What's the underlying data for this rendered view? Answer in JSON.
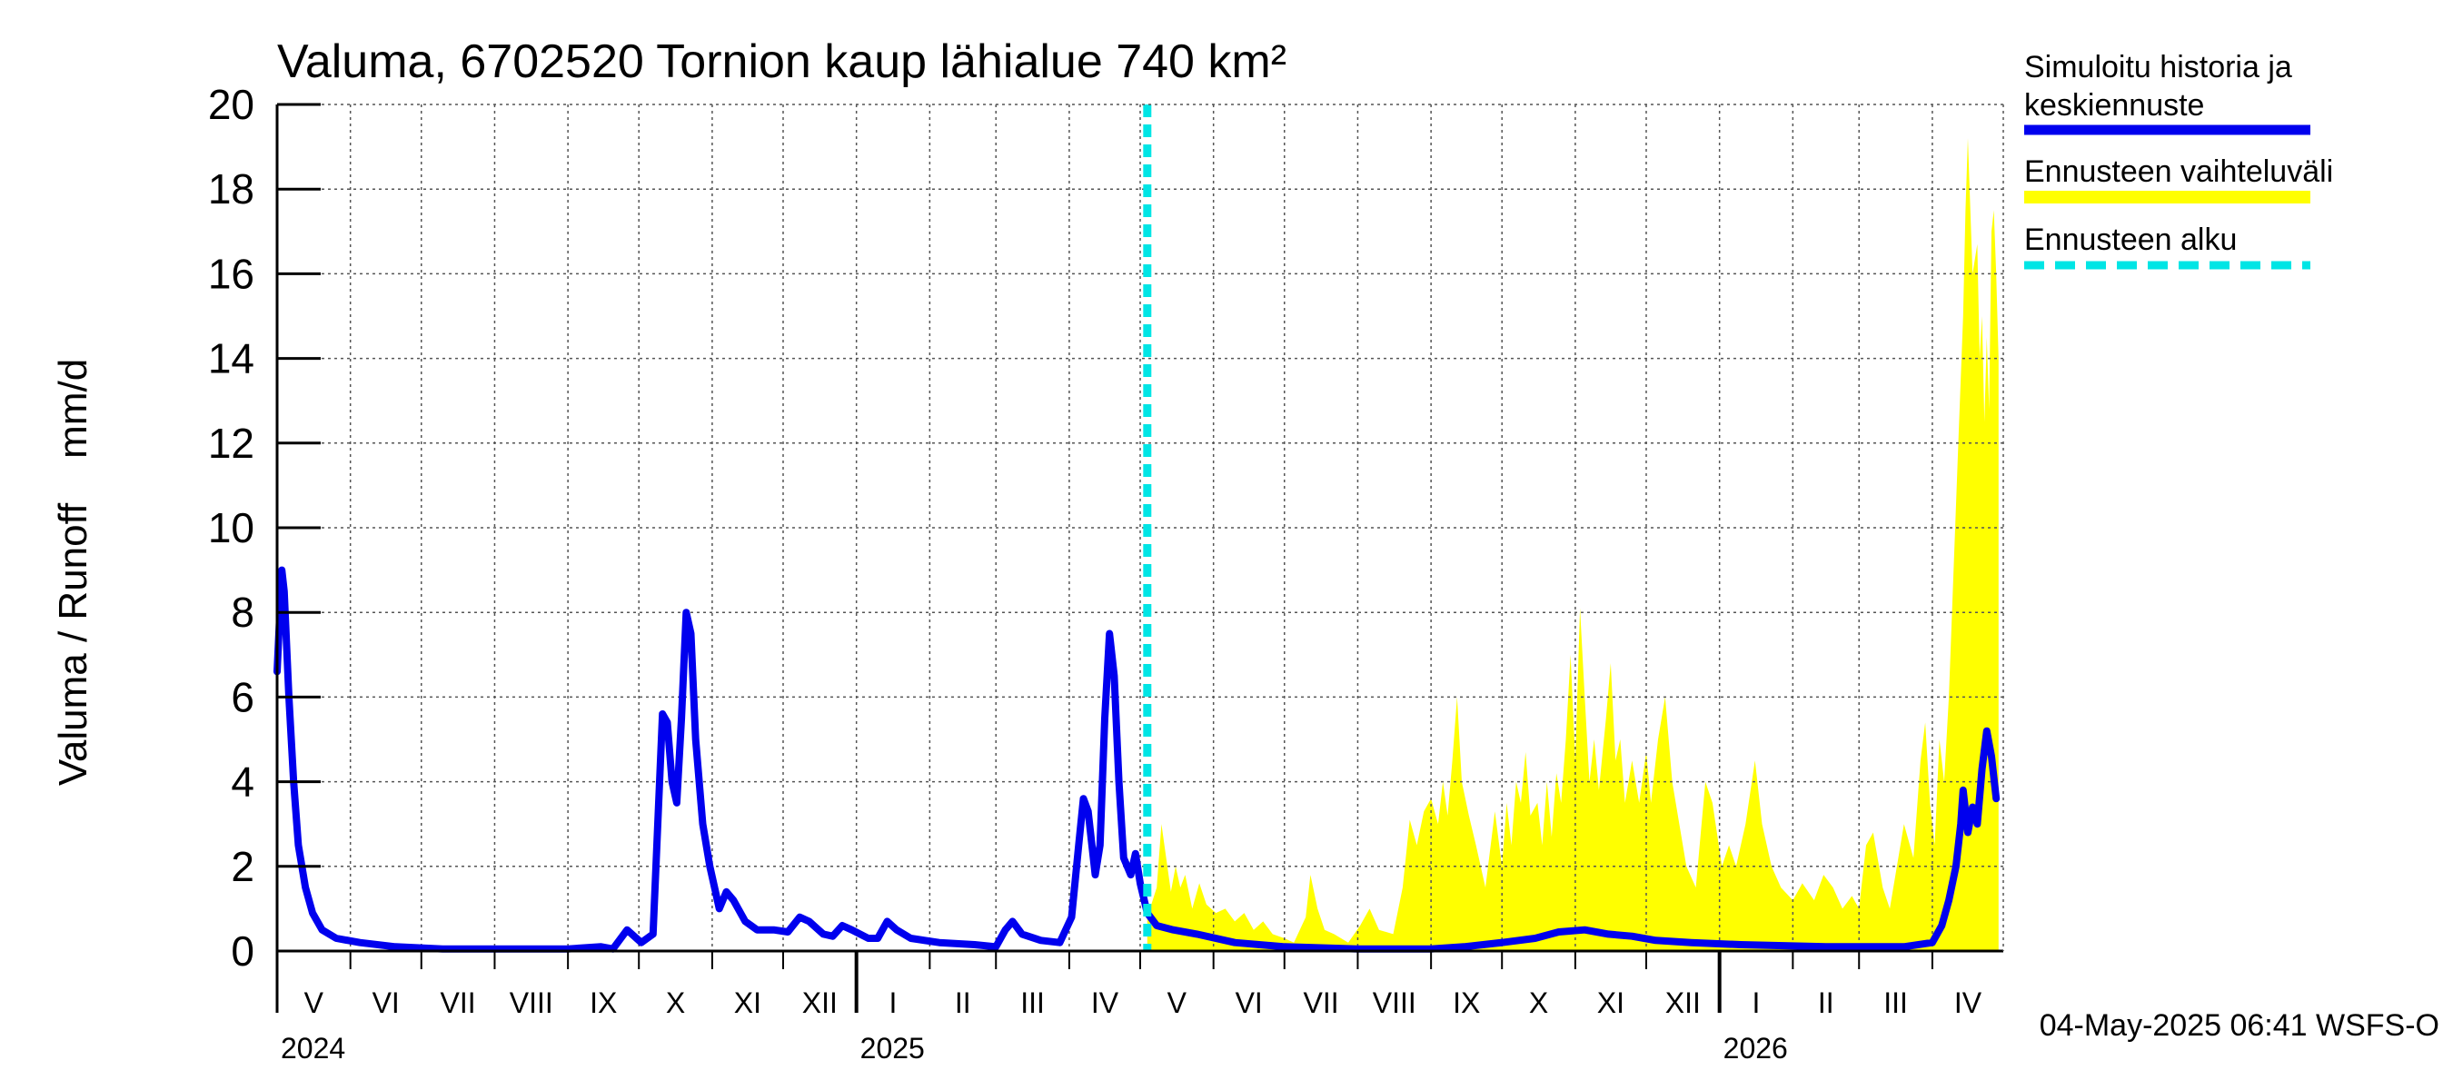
{
  "chart_data": {
    "type": "line",
    "title": "Valuma, 6702520 Tornion kaup lähialue 740 km²",
    "ylabel": "Valuma / Runoff    mm/d",
    "ylim": [
      0,
      20
    ],
    "yticks": [
      "0",
      "2",
      "4",
      "6",
      "8",
      "10",
      "12",
      "14",
      "16",
      "18",
      "20"
    ],
    "xlim": [
      "2024-05-01",
      "2026-05-01"
    ],
    "grid": true,
    "legend_position": "right",
    "forecast_start": "2025-05-04",
    "months": [
      {
        "label": "V",
        "start": "2024-05-01",
        "end": "2024-06-01"
      },
      {
        "label": "VI",
        "start": "2024-06-01",
        "end": "2024-07-01"
      },
      {
        "label": "VII",
        "start": "2024-07-01",
        "end": "2024-08-01"
      },
      {
        "label": "VIII",
        "start": "2024-08-01",
        "end": "2024-09-01"
      },
      {
        "label": "IX",
        "start": "2024-09-01",
        "end": "2024-10-01"
      },
      {
        "label": "X",
        "start": "2024-10-01",
        "end": "2024-11-01"
      },
      {
        "label": "XI",
        "start": "2024-11-01",
        "end": "2024-12-01"
      },
      {
        "label": "XII",
        "start": "2024-12-01",
        "end": "2025-01-01"
      },
      {
        "label": "I",
        "start": "2025-01-01",
        "end": "2025-02-01"
      },
      {
        "label": "II",
        "start": "2025-02-01",
        "end": "2025-03-01"
      },
      {
        "label": "III",
        "start": "2025-03-01",
        "end": "2025-04-01"
      },
      {
        "label": "IV",
        "start": "2025-04-01",
        "end": "2025-05-01"
      },
      {
        "label": "V",
        "start": "2025-05-01",
        "end": "2025-06-01"
      },
      {
        "label": "VI",
        "start": "2025-06-01",
        "end": "2025-07-01"
      },
      {
        "label": "VII",
        "start": "2025-07-01",
        "end": "2025-08-01"
      },
      {
        "label": "VIII",
        "start": "2025-08-01",
        "end": "2025-09-01"
      },
      {
        "label": "IX",
        "start": "2025-09-01",
        "end": "2025-10-01"
      },
      {
        "label": "X",
        "start": "2025-10-01",
        "end": "2025-11-01"
      },
      {
        "label": "XI",
        "start": "2025-11-01",
        "end": "2025-12-01"
      },
      {
        "label": "XII",
        "start": "2025-12-01",
        "end": "2026-01-01"
      },
      {
        "label": "I",
        "start": "2026-01-01",
        "end": "2026-02-01"
      },
      {
        "label": "II",
        "start": "2026-02-01",
        "end": "2026-03-01"
      },
      {
        "label": "III",
        "start": "2026-03-01",
        "end": "2026-04-01"
      },
      {
        "label": "IV",
        "start": "2026-04-01",
        "end": "2026-05-01"
      }
    ],
    "years": [
      {
        "label": "2024",
        "date": "2024-05-01"
      },
      {
        "label": "2025",
        "date": "2025-01-01"
      },
      {
        "label": "2026",
        "date": "2026-01-01"
      }
    ],
    "year_boundaries": [
      "2025-01-01",
      "2026-01-01"
    ],
    "series": [
      {
        "name": "Simuloitu historia ja keskiennuste",
        "color": "#0000ee",
        "points": [
          [
            "2024-05-01",
            6.6
          ],
          [
            "2024-05-03",
            9.0
          ],
          [
            "2024-05-04",
            8.5
          ],
          [
            "2024-05-06",
            6.0
          ],
          [
            "2024-05-08",
            4.0
          ],
          [
            "2024-05-10",
            2.5
          ],
          [
            "2024-05-13",
            1.5
          ],
          [
            "2024-05-16",
            0.9
          ],
          [
            "2024-05-20",
            0.5
          ],
          [
            "2024-05-26",
            0.3
          ],
          [
            "2024-06-05",
            0.2
          ],
          [
            "2024-06-20",
            0.1
          ],
          [
            "2024-07-10",
            0.05
          ],
          [
            "2024-08-10",
            0.05
          ],
          [
            "2024-09-01",
            0.05
          ],
          [
            "2024-09-15",
            0.1
          ],
          [
            "2024-09-20",
            0.05
          ],
          [
            "2024-09-26",
            0.5
          ],
          [
            "2024-09-30",
            0.3
          ],
          [
            "2024-10-02",
            0.2
          ],
          [
            "2024-10-07",
            0.4
          ],
          [
            "2024-10-09",
            3.0
          ],
          [
            "2024-10-11",
            5.6
          ],
          [
            "2024-10-13",
            5.4
          ],
          [
            "2024-10-15",
            4.0
          ],
          [
            "2024-10-17",
            3.5
          ],
          [
            "2024-10-19",
            5.5
          ],
          [
            "2024-10-21",
            8.0
          ],
          [
            "2024-10-23",
            7.5
          ],
          [
            "2024-10-25",
            5.0
          ],
          [
            "2024-10-28",
            3.0
          ],
          [
            "2024-10-31",
            2.0
          ],
          [
            "2024-11-04",
            1.0
          ],
          [
            "2024-11-07",
            1.4
          ],
          [
            "2024-11-10",
            1.2
          ],
          [
            "2024-11-15",
            0.7
          ],
          [
            "2024-11-20",
            0.5
          ],
          [
            "2024-11-27",
            0.5
          ],
          [
            "2024-12-03",
            0.45
          ],
          [
            "2024-12-08",
            0.8
          ],
          [
            "2024-12-12",
            0.7
          ],
          [
            "2024-12-18",
            0.4
          ],
          [
            "2024-12-22",
            0.35
          ],
          [
            "2024-12-26",
            0.6
          ],
          [
            "2024-12-30",
            0.5
          ],
          [
            "2025-01-06",
            0.3
          ],
          [
            "2025-01-10",
            0.3
          ],
          [
            "2025-01-14",
            0.7
          ],
          [
            "2025-01-18",
            0.5
          ],
          [
            "2025-01-24",
            0.3
          ],
          [
            "2025-02-05",
            0.2
          ],
          [
            "2025-02-20",
            0.15
          ],
          [
            "2025-03-01",
            0.1
          ],
          [
            "2025-03-05",
            0.5
          ],
          [
            "2025-03-08",
            0.7
          ],
          [
            "2025-03-12",
            0.4
          ],
          [
            "2025-03-20",
            0.25
          ],
          [
            "2025-03-28",
            0.2
          ],
          [
            "2025-04-02",
            0.8
          ],
          [
            "2025-04-05",
            2.5
          ],
          [
            "2025-04-07",
            3.6
          ],
          [
            "2025-04-09",
            3.3
          ],
          [
            "2025-04-12",
            1.8
          ],
          [
            "2025-04-14",
            2.5
          ],
          [
            "2025-04-16",
            5.5
          ],
          [
            "2025-04-18",
            7.5
          ],
          [
            "2025-04-20",
            6.5
          ],
          [
            "2025-04-22",
            4.0
          ],
          [
            "2025-04-24",
            2.2
          ],
          [
            "2025-04-27",
            1.8
          ],
          [
            "2025-04-29",
            2.3
          ],
          [
            "2025-05-01",
            1.6
          ],
          [
            "2025-05-04",
            0.9
          ],
          [
            "2025-05-08",
            0.6
          ],
          [
            "2025-05-15",
            0.5
          ],
          [
            "2025-05-25",
            0.4
          ],
          [
            "2025-06-10",
            0.2
          ],
          [
            "2025-07-01",
            0.1
          ],
          [
            "2025-08-01",
            0.05
          ],
          [
            "2025-09-01",
            0.05
          ],
          [
            "2025-09-15",
            0.1
          ],
          [
            "2025-10-01",
            0.2
          ],
          [
            "2025-10-15",
            0.3
          ],
          [
            "2025-10-25",
            0.45
          ],
          [
            "2025-11-05",
            0.5
          ],
          [
            "2025-11-15",
            0.4
          ],
          [
            "2025-11-25",
            0.35
          ],
          [
            "2025-12-05",
            0.25
          ],
          [
            "2025-12-20",
            0.2
          ],
          [
            "2026-01-10",
            0.15
          ],
          [
            "2026-02-15",
            0.1
          ],
          [
            "2026-03-20",
            0.1
          ],
          [
            "2026-04-01",
            0.2
          ],
          [
            "2026-04-05",
            0.6
          ],
          [
            "2026-04-08",
            1.2
          ],
          [
            "2026-04-11",
            2.0
          ],
          [
            "2026-04-13",
            3.0
          ],
          [
            "2026-04-14",
            3.8
          ],
          [
            "2026-04-16",
            2.8
          ],
          [
            "2026-04-18",
            3.4
          ],
          [
            "2026-04-20",
            3.0
          ],
          [
            "2026-04-22",
            4.3
          ],
          [
            "2026-04-24",
            5.2
          ],
          [
            "2026-04-26",
            4.6
          ],
          [
            "2026-04-28",
            3.6
          ]
        ]
      }
    ],
    "range_band": {
      "name": "Ennusteen vaihteluväli",
      "color": "#ffff00",
      "points": [
        [
          "2025-05-04",
          0.8
        ],
        [
          "2025-05-08",
          1.5
        ],
        [
          "2025-05-10",
          3.0
        ],
        [
          "2025-05-12",
          2.2
        ],
        [
          "2025-05-14",
          1.4
        ],
        [
          "2025-05-16",
          2.0
        ],
        [
          "2025-05-18",
          1.5
        ],
        [
          "2025-05-20",
          1.8
        ],
        [
          "2025-05-23",
          1.0
        ],
        [
          "2025-05-26",
          1.6
        ],
        [
          "2025-05-29",
          1.1
        ],
        [
          "2025-06-02",
          0.9
        ],
        [
          "2025-06-06",
          1.0
        ],
        [
          "2025-06-10",
          0.7
        ],
        [
          "2025-06-14",
          0.9
        ],
        [
          "2025-06-18",
          0.5
        ],
        [
          "2025-06-22",
          0.7
        ],
        [
          "2025-06-26",
          0.4
        ],
        [
          "2025-07-01",
          0.3
        ],
        [
          "2025-07-05",
          0.2
        ],
        [
          "2025-07-10",
          0.8
        ],
        [
          "2025-07-12",
          1.8
        ],
        [
          "2025-07-15",
          1.0
        ],
        [
          "2025-07-18",
          0.5
        ],
        [
          "2025-07-22",
          0.4
        ],
        [
          "2025-07-28",
          0.2
        ],
        [
          "2025-08-02",
          0.6
        ],
        [
          "2025-08-06",
          1.0
        ],
        [
          "2025-08-10",
          0.5
        ],
        [
          "2025-08-16",
          0.4
        ],
        [
          "2025-08-20",
          1.5
        ],
        [
          "2025-08-23",
          3.1
        ],
        [
          "2025-08-26",
          2.5
        ],
        [
          "2025-08-29",
          3.3
        ],
        [
          "2025-09-01",
          3.6
        ],
        [
          "2025-09-04",
          3.0
        ],
        [
          "2025-09-06",
          4.0
        ],
        [
          "2025-09-08",
          3.2
        ],
        [
          "2025-09-10",
          4.5
        ],
        [
          "2025-09-12",
          6.0
        ],
        [
          "2025-09-14",
          4.0
        ],
        [
          "2025-09-17",
          3.2
        ],
        [
          "2025-09-20",
          2.5
        ],
        [
          "2025-09-24",
          1.5
        ],
        [
          "2025-09-28",
          3.3
        ],
        [
          "2025-10-01",
          2.0
        ],
        [
          "2025-10-03",
          3.5
        ],
        [
          "2025-10-05",
          2.5
        ],
        [
          "2025-10-07",
          4.0
        ],
        [
          "2025-10-09",
          3.5
        ],
        [
          "2025-10-11",
          4.7
        ],
        [
          "2025-10-13",
          3.2
        ],
        [
          "2025-10-16",
          3.5
        ],
        [
          "2025-10-18",
          2.5
        ],
        [
          "2025-10-20",
          4.0
        ],
        [
          "2025-10-22",
          2.7
        ],
        [
          "2025-10-24",
          4.2
        ],
        [
          "2025-10-26",
          3.5
        ],
        [
          "2025-10-28",
          5.0
        ],
        [
          "2025-10-30",
          7.0
        ],
        [
          "2025-11-01",
          4.5
        ],
        [
          "2025-11-03",
          8.1
        ],
        [
          "2025-11-05",
          6.0
        ],
        [
          "2025-11-07",
          4.0
        ],
        [
          "2025-11-09",
          5.0
        ],
        [
          "2025-11-11",
          3.8
        ],
        [
          "2025-11-14",
          5.5
        ],
        [
          "2025-11-16",
          6.8
        ],
        [
          "2025-11-18",
          4.5
        ],
        [
          "2025-11-20",
          5.0
        ],
        [
          "2025-11-22",
          3.5
        ],
        [
          "2025-11-25",
          4.5
        ],
        [
          "2025-11-28",
          3.5
        ],
        [
          "2025-12-01",
          4.7
        ],
        [
          "2025-12-03",
          3.5
        ],
        [
          "2025-12-06",
          5.0
        ],
        [
          "2025-12-09",
          6.0
        ],
        [
          "2025-12-12",
          4.0
        ],
        [
          "2025-12-15",
          3.0
        ],
        [
          "2025-12-18",
          2.0
        ],
        [
          "2025-12-22",
          1.5
        ],
        [
          "2025-12-26",
          4.0
        ],
        [
          "2025-12-29",
          3.5
        ],
        [
          "2026-01-02",
          2.0
        ],
        [
          "2026-01-05",
          2.5
        ],
        [
          "2026-01-08",
          2.0
        ],
        [
          "2026-01-12",
          3.0
        ],
        [
          "2026-01-16",
          4.5
        ],
        [
          "2026-01-19",
          3.0
        ],
        [
          "2026-01-23",
          2.0
        ],
        [
          "2026-01-27",
          1.5
        ],
        [
          "2026-02-01",
          1.2
        ],
        [
          "2026-02-05",
          1.6
        ],
        [
          "2026-02-10",
          1.2
        ],
        [
          "2026-02-14",
          1.8
        ],
        [
          "2026-02-18",
          1.5
        ],
        [
          "2026-02-22",
          1.0
        ],
        [
          "2026-02-26",
          1.3
        ],
        [
          "2026-03-01",
          1.0
        ],
        [
          "2026-03-04",
          2.5
        ],
        [
          "2026-03-07",
          2.8
        ],
        [
          "2026-03-11",
          1.5
        ],
        [
          "2026-03-14",
          1.0
        ],
        [
          "2026-03-17",
          2.0
        ],
        [
          "2026-03-20",
          3.0
        ],
        [
          "2026-03-24",
          2.2
        ],
        [
          "2026-03-27",
          4.5
        ],
        [
          "2026-03-29",
          5.4
        ],
        [
          "2026-03-31",
          3.5
        ],
        [
          "2026-04-02",
          2.5
        ],
        [
          "2026-04-04",
          5.0
        ],
        [
          "2026-04-06",
          4.0
        ],
        [
          "2026-04-08",
          6.0
        ],
        [
          "2026-04-10",
          9.0
        ],
        [
          "2026-04-12",
          12.0
        ],
        [
          "2026-04-14",
          15.0
        ],
        [
          "2026-04-15",
          17.5
        ],
        [
          "2026-04-16",
          19.2
        ],
        [
          "2026-04-18",
          16.0
        ],
        [
          "2026-04-20",
          16.7
        ],
        [
          "2026-04-21",
          14.0
        ],
        [
          "2026-04-22",
          15.0
        ],
        [
          "2026-04-23",
          12.5
        ],
        [
          "2026-04-24",
          14.5
        ],
        [
          "2026-04-25",
          12.8
        ],
        [
          "2026-04-26",
          17.0
        ],
        [
          "2026-04-27",
          17.5
        ],
        [
          "2026-04-28",
          16.0
        ],
        [
          "2026-04-29",
          14.0
        ]
      ]
    }
  },
  "legend": {
    "series_label_1": "Simuloitu historia ja",
    "series_label_2": "keskiennuste",
    "range_label": "Ennusteen vaihteluväli",
    "forecast_label": "Ennusteen alku",
    "series_color": "#0000ee",
    "range_color": "#ffff00",
    "forecast_color": "#00e5e5"
  },
  "footer": {
    "timestamp": "04-May-2025 06:41 WSFS-O"
  }
}
